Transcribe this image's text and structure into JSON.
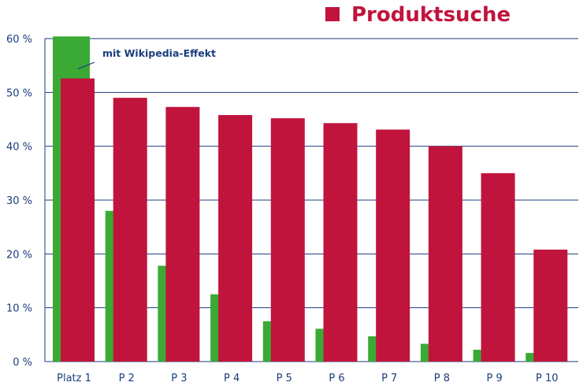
{
  "chart_data": {
    "type": "bar",
    "title": "",
    "xlabel": "",
    "ylabel": "",
    "categories": [
      "Platz 1",
      "P 2",
      "P 3",
      "P 4",
      "P 5",
      "P 6",
      "P 7",
      "P 8",
      "P 9",
      "P 10"
    ],
    "ylim": [
      0,
      60
    ],
    "y_ticks": [
      0,
      10,
      20,
      30,
      40,
      50,
      60
    ],
    "y_tick_labels": [
      "0 %",
      "10 %",
      "20 %",
      "30 %",
      "40 %",
      "50 %",
      "60 %"
    ],
    "grid": true,
    "legend_position": "top-right",
    "series": [
      {
        "name": "",
        "color": "#3aaa35",
        "values": [
          60.4,
          28.0,
          17.8,
          12.5,
          7.5,
          6.1,
          4.7,
          3.3,
          2.2,
          1.6
        ]
      },
      {
        "name": "Produktsuche",
        "color": "#c0143c",
        "values": [
          52.6,
          49.0,
          47.3,
          45.8,
          45.2,
          44.3,
          43.1,
          40.0,
          35.0,
          20.8
        ]
      }
    ],
    "annotations": [
      {
        "text": "mit Wikipedia-Effekt",
        "target_category": "Platz 1",
        "target_value": 54.5
      }
    ]
  },
  "legend": {
    "label": "Produktsuche",
    "color": "#c0143c"
  },
  "colors": {
    "axis_text": "#1a3d7c",
    "grid": "#1a3d7c"
  }
}
